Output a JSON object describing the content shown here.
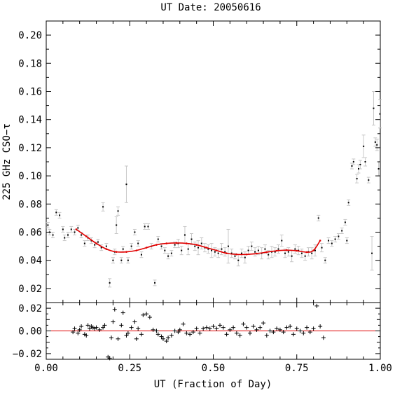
{
  "chart_data": {
    "type": "scatter",
    "title": "UT Date: 20050616",
    "xlabel": "UT (Fraction of Day)",
    "ylabel": "225 GHz CSO−τ",
    "xlim": [
      0,
      1
    ],
    "x_ticks": [
      "0.00",
      "0.25",
      "0.50",
      "0.75",
      "1.00"
    ],
    "top_panel": {
      "ylim": [
        0.01,
        0.21
      ],
      "y_ticks": [
        "0.02",
        "0.04",
        "0.06",
        "0.08",
        "0.10",
        "0.12",
        "0.14",
        "0.16",
        "0.18",
        "0.20"
      ],
      "points": [
        [
          0.005,
          0.065,
          0.002
        ],
        [
          0.01,
          0.06,
          0.002
        ],
        [
          0.02,
          0.058,
          0.002
        ],
        [
          0.03,
          0.074,
          0.002
        ],
        [
          0.04,
          0.072,
          0.002
        ],
        [
          0.05,
          0.062,
          0.002
        ],
        [
          0.055,
          0.056,
          0.002
        ],
        [
          0.065,
          0.058,
          0.002
        ],
        [
          0.075,
          0.062,
          0.002
        ],
        [
          0.085,
          0.06,
          0.002
        ],
        [
          0.095,
          0.063,
          0.002
        ],
        [
          0.105,
          0.058,
          0.002
        ],
        [
          0.115,
          0.052,
          0.002
        ],
        [
          0.125,
          0.056,
          0.002
        ],
        [
          0.135,
          0.054,
          0.002
        ],
        [
          0.145,
          0.051,
          0.002
        ],
        [
          0.155,
          0.053,
          0.002
        ],
        [
          0.165,
          0.049,
          0.002
        ],
        [
          0.17,
          0.078,
          0.003
        ],
        [
          0.18,
          0.05,
          0.002
        ],
        [
          0.19,
          0.024,
          0.003
        ],
        [
          0.2,
          0.04,
          0.002
        ],
        [
          0.205,
          0.046,
          0.002
        ],
        [
          0.21,
          0.065,
          0.006
        ],
        [
          0.215,
          0.075,
          0.003
        ],
        [
          0.225,
          0.04,
          0.002
        ],
        [
          0.23,
          0.048,
          0.002
        ],
        [
          0.24,
          0.094,
          0.013
        ],
        [
          0.245,
          0.04,
          0.002
        ],
        [
          0.255,
          0.05,
          0.002
        ],
        [
          0.265,
          0.06,
          0.002
        ],
        [
          0.275,
          0.052,
          0.002
        ],
        [
          0.285,
          0.044,
          0.002
        ],
        [
          0.295,
          0.064,
          0.002
        ],
        [
          0.305,
          0.064,
          0.002
        ],
        [
          0.315,
          0.05,
          0.002
        ],
        [
          0.325,
          0.024,
          0.002
        ],
        [
          0.335,
          0.055,
          0.002
        ],
        [
          0.345,
          0.05,
          0.002
        ],
        [
          0.355,
          0.047,
          0.002
        ],
        [
          0.365,
          0.043,
          0.002
        ],
        [
          0.375,
          0.045,
          0.002
        ],
        [
          0.385,
          0.051,
          0.002
        ],
        [
          0.395,
          0.052,
          0.003
        ],
        [
          0.405,
          0.047,
          0.003
        ],
        [
          0.415,
          0.058,
          0.006
        ],
        [
          0.425,
          0.048,
          0.004
        ],
        [
          0.435,
          0.055,
          0.004
        ],
        [
          0.445,
          0.05,
          0.003
        ],
        [
          0.455,
          0.049,
          0.005
        ],
        [
          0.465,
          0.052,
          0.004
        ],
        [
          0.475,
          0.049,
          0.003
        ],
        [
          0.485,
          0.048,
          0.003
        ],
        [
          0.495,
          0.047,
          0.005
        ],
        [
          0.505,
          0.046,
          0.003
        ],
        [
          0.515,
          0.045,
          0.003
        ],
        [
          0.525,
          0.048,
          0.004
        ],
        [
          0.535,
          0.046,
          0.003
        ],
        [
          0.545,
          0.05,
          0.012
        ],
        [
          0.555,
          0.045,
          0.003
        ],
        [
          0.565,
          0.043,
          0.002
        ],
        [
          0.575,
          0.04,
          0.004
        ],
        [
          0.585,
          0.045,
          0.003
        ],
        [
          0.595,
          0.042,
          0.004
        ],
        [
          0.605,
          0.047,
          0.003
        ],
        [
          0.615,
          0.05,
          0.003
        ],
        [
          0.625,
          0.046,
          0.003
        ],
        [
          0.635,
          0.047,
          0.003
        ],
        [
          0.645,
          0.045,
          0.004
        ],
        [
          0.655,
          0.048,
          0.003
        ],
        [
          0.665,
          0.044,
          0.003
        ],
        [
          0.675,
          0.046,
          0.004
        ],
        [
          0.685,
          0.046,
          0.003
        ],
        [
          0.695,
          0.048,
          0.003
        ],
        [
          0.705,
          0.054,
          0.004
        ],
        [
          0.715,
          0.045,
          0.003
        ],
        [
          0.725,
          0.046,
          0.003
        ],
        [
          0.735,
          0.043,
          0.004
        ],
        [
          0.745,
          0.048,
          0.003
        ],
        [
          0.755,
          0.047,
          0.003
        ],
        [
          0.765,
          0.045,
          0.003
        ],
        [
          0.775,
          0.043,
          0.003
        ],
        [
          0.785,
          0.046,
          0.003
        ],
        [
          0.795,
          0.045,
          0.004
        ],
        [
          0.805,
          0.047,
          0.004
        ],
        [
          0.815,
          0.07,
          0.002
        ],
        [
          0.825,
          0.049,
          0.003
        ],
        [
          0.835,
          0.04,
          0.002
        ],
        [
          0.845,
          0.054,
          0.002
        ],
        [
          0.855,
          0.052,
          0.002
        ],
        [
          0.865,
          0.055,
          0.002
        ],
        [
          0.875,
          0.057,
          0.002
        ],
        [
          0.885,
          0.061,
          0.002
        ],
        [
          0.895,
          0.067,
          0.002
        ],
        [
          0.9,
          0.054,
          0.002
        ],
        [
          0.905,
          0.081,
          0.002
        ],
        [
          0.915,
          0.107,
          0.002
        ],
        [
          0.92,
          0.11,
          0.002
        ],
        [
          0.93,
          0.098,
          0.003
        ],
        [
          0.935,
          0.105,
          0.003
        ],
        [
          0.94,
          0.108,
          0.003
        ],
        [
          0.95,
          0.121,
          0.008
        ],
        [
          0.955,
          0.11,
          0.003
        ],
        [
          0.965,
          0.097,
          0.002
        ],
        [
          0.975,
          0.045,
          0.012
        ],
        [
          0.98,
          0.148,
          0.012
        ],
        [
          0.985,
          0.124,
          0.003
        ],
        [
          0.99,
          0.122,
          0.004
        ],
        [
          0.995,
          0.105,
          0.005
        ],
        [
          0.999,
          0.144,
          0.01
        ]
      ],
      "fit": {
        "x": [
          0.09,
          0.12,
          0.15,
          0.18,
          0.21,
          0.24,
          0.27,
          0.3,
          0.33,
          0.36,
          0.39,
          0.42,
          0.45,
          0.48,
          0.51,
          0.54,
          0.57,
          0.6,
          0.63,
          0.66,
          0.69,
          0.72,
          0.75,
          0.78,
          0.8,
          0.82
        ],
        "y": [
          0.062,
          0.057,
          0.052,
          0.048,
          0.046,
          0.046,
          0.047,
          0.049,
          0.051,
          0.052,
          0.0523,
          0.052,
          0.051,
          0.049,
          0.047,
          0.045,
          0.0442,
          0.0442,
          0.0448,
          0.0458,
          0.0468,
          0.0472,
          0.0468,
          0.0458,
          0.047,
          0.054
        ]
      }
    },
    "bottom_panel": {
      "ylim": [
        -0.025,
        0.025
      ],
      "y_ticks": [
        "−0.02",
        "0.00",
        "0.02"
      ],
      "residuals": [
        [
          0.08,
          -0.001
        ],
        [
          0.085,
          0.002
        ],
        [
          0.095,
          -0.002
        ],
        [
          0.1,
          0.001
        ],
        [
          0.105,
          0.004
        ],
        [
          0.115,
          -0.003
        ],
        [
          0.12,
          -0.004
        ],
        [
          0.125,
          0.005
        ],
        [
          0.13,
          0.002
        ],
        [
          0.135,
          0.004
        ],
        [
          0.14,
          0.003
        ],
        [
          0.145,
          0.002
        ],
        [
          0.15,
          0.003
        ],
        [
          0.16,
          0.001
        ],
        [
          0.17,
          0.003
        ],
        [
          0.175,
          0.005
        ],
        [
          0.185,
          -0.023
        ],
        [
          0.19,
          -0.024
        ],
        [
          0.195,
          -0.006
        ],
        [
          0.2,
          0.008
        ],
        [
          0.205,
          0.019
        ],
        [
          0.215,
          -0.007
        ],
        [
          0.225,
          0.005
        ],
        [
          0.23,
          0.016
        ],
        [
          0.24,
          -0.004
        ],
        [
          0.245,
          -0.002
        ],
        [
          0.255,
          0.003
        ],
        [
          0.265,
          0.008
        ],
        [
          0.27,
          -0.007
        ],
        [
          0.275,
          0.002
        ],
        [
          0.285,
          -0.003
        ],
        [
          0.29,
          0.014
        ],
        [
          0.3,
          0.015
        ],
        [
          0.31,
          0.012
        ],
        [
          0.32,
          0.001
        ],
        [
          0.33,
          0.0
        ],
        [
          0.335,
          -0.003
        ],
        [
          0.345,
          -0.005
        ],
        [
          0.35,
          -0.007
        ],
        [
          0.36,
          -0.009
        ],
        [
          0.365,
          -0.006
        ],
        [
          0.375,
          -0.004
        ],
        [
          0.385,
          0.0
        ],
        [
          0.395,
          -0.001
        ],
        [
          0.4,
          0.001
        ],
        [
          0.41,
          0.006
        ],
        [
          0.42,
          -0.002
        ],
        [
          0.43,
          -0.003
        ],
        [
          0.44,
          -0.001
        ],
        [
          0.45,
          0.002
        ],
        [
          0.46,
          -0.002
        ],
        [
          0.47,
          0.002
        ],
        [
          0.48,
          0.003
        ],
        [
          0.49,
          0.002
        ],
        [
          0.5,
          0.004
        ],
        [
          0.51,
          0.002
        ],
        [
          0.52,
          0.005
        ],
        [
          0.53,
          0.003
        ],
        [
          0.54,
          -0.003
        ],
        [
          0.55,
          0.001
        ],
        [
          0.56,
          0.003
        ],
        [
          0.57,
          -0.002
        ],
        [
          0.58,
          -0.004
        ],
        [
          0.59,
          0.006
        ],
        [
          0.6,
          0.003
        ],
        [
          0.61,
          -0.002
        ],
        [
          0.62,
          0.004
        ],
        [
          0.63,
          0.001
        ],
        [
          0.64,
          0.003
        ],
        [
          0.65,
          0.007
        ],
        [
          0.66,
          -0.004
        ],
        [
          0.67,
          0.0
        ],
        [
          0.68,
          -0.001
        ],
        [
          0.69,
          0.002
        ],
        [
          0.7,
          0.001
        ],
        [
          0.71,
          -0.001
        ],
        [
          0.72,
          0.003
        ],
        [
          0.73,
          0.004
        ],
        [
          0.74,
          -0.003
        ],
        [
          0.75,
          0.002
        ],
        [
          0.76,
          0.0
        ],
        [
          0.77,
          -0.002
        ],
        [
          0.78,
          0.003
        ],
        [
          0.79,
          -0.001
        ],
        [
          0.8,
          0.002
        ],
        [
          0.81,
          0.022
        ],
        [
          0.82,
          0.004
        ],
        [
          0.83,
          -0.006
        ]
      ]
    }
  }
}
